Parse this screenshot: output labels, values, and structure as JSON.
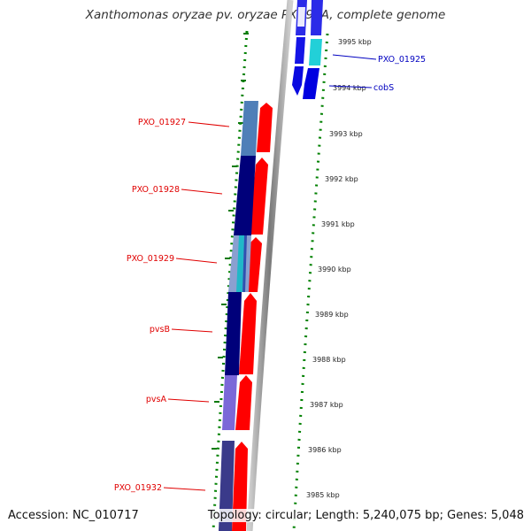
{
  "title": "Xanthomonas oryzae pv. oryzae PXO99A, complete genome",
  "ticks": [
    "3995 kbp",
    "3994 kbp",
    "3993 kbp",
    "3992 kbp",
    "3991 kbp",
    "3990 kbp",
    "3989 kbp",
    "3988 kbp",
    "3987 kbp",
    "3986 kbp",
    "3985 kbp"
  ],
  "genes": [
    {
      "name": "PXO_01925",
      "color": "#0000c0"
    },
    {
      "name": "cobS",
      "color": "#0000c0"
    },
    {
      "name": "PXO_01927",
      "color": "#e00000"
    },
    {
      "name": "PXO_01928",
      "color": "#e00000"
    },
    {
      "name": "PXO_01929",
      "color": "#e00000"
    },
    {
      "name": "pvsB",
      "color": "#e00000"
    },
    {
      "name": "pvsA",
      "color": "#e00000"
    },
    {
      "name": "PXO_01932",
      "color": "#e00000"
    }
  ],
  "footer": {
    "accession": "Accession: NC_010717",
    "summary": "Topology: circular; Length: 5,240,075 bp; Genes: 5,048"
  },
  "colors": {
    "forward_cds": "#ff0000",
    "reverse_cds": "#0000ff",
    "tick_marks": "#008000",
    "backbone": "#888888"
  }
}
